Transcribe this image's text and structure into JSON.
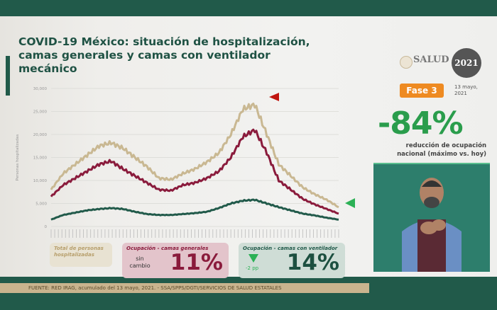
{
  "header": {
    "title": "COVID-19 México: situación de hospitalización, camas generales y camas con ventilador mecánico",
    "logo_text": "SALUD",
    "badge_text": "2021",
    "phase": "Fase 3",
    "date": "13 mayo, 2021"
  },
  "summary": {
    "value": "-84%",
    "caption": "reducción de ocupación nacional (máximo vs. hoy)"
  },
  "cards": {
    "total": {
      "label": "Total de personas hospitalizadas"
    },
    "general": {
      "label": "Ocupación - camas generales",
      "change": "sin cambio",
      "value": "11%"
    },
    "ventilator": {
      "label": "Ocupación - camas con ventilador",
      "change": "-2 pp",
      "value": "14%"
    }
  },
  "source": "FUENTE: RED IRAG, acumulado del 13 mayo, 2021. - SSA/SPPS/DGTI/SERVICIOS DE SALUD ESTATALES",
  "colors": {
    "total": "#c9b892",
    "general": "#8a1b3c",
    "ventilator": "#215a4a",
    "peak_marker": "#c0150f",
    "current_marker": "#2bb155"
  },
  "chart_data": {
    "type": "line",
    "ylabel": "Personas hospitalizadas",
    "ylim": [
      0,
      30000
    ],
    "yticks": [
      "0",
      "5,000",
      "10,000",
      "15,000",
      "20,000",
      "25,000",
      "30,000"
    ],
    "x": [
      0,
      1,
      2,
      3,
      4,
      5,
      6,
      7,
      8,
      9,
      10,
      11,
      12,
      13,
      14,
      15,
      16,
      17,
      18,
      19,
      20,
      21,
      22,
      23,
      24
    ],
    "series": [
      {
        "name": "Total de personas hospitalizadas",
        "values": [
          8000,
          11500,
          13500,
          15500,
          17500,
          18200,
          17000,
          15000,
          13000,
          10500,
          10200,
          11500,
          12500,
          14000,
          16000,
          20000,
          25500,
          26500,
          20000,
          13500,
          11000,
          8500,
          7000,
          5800,
          4200
        ]
      },
      {
        "name": "Ocupación - camas generales",
        "values": [
          6500,
          9000,
          10500,
          12000,
          13500,
          14200,
          12500,
          11000,
          9500,
          8000,
          7800,
          9000,
          9500,
          10500,
          12000,
          15000,
          19500,
          21000,
          16000,
          10000,
          8000,
          6000,
          4800,
          3800,
          2800
        ]
      },
      {
        "name": "Ocupación - camas con ventilador",
        "values": [
          1500,
          2500,
          3000,
          3500,
          3800,
          4000,
          3800,
          3200,
          2700,
          2500,
          2500,
          2700,
          2900,
          3200,
          4000,
          5000,
          5600,
          5800,
          5000,
          4200,
          3500,
          2800,
          2400,
          1900,
          1500
        ]
      }
    ]
  }
}
